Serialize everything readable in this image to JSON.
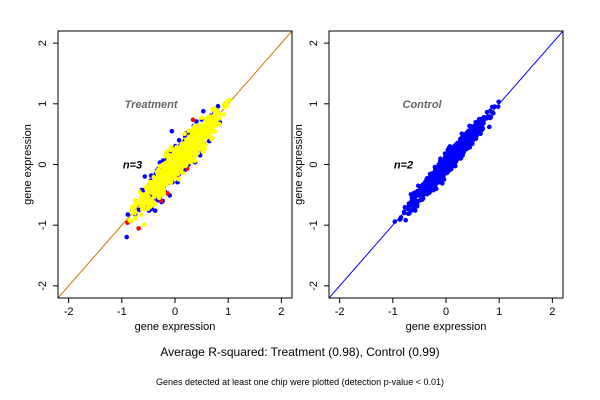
{
  "summary": "Average R-squared: Treatment (0.98), Control (0.99)",
  "footnote": "Genes detected at least one chip were plotted (detection p-value < 0.01)",
  "chart_data": [
    {
      "type": "scatter",
      "title": "Treatment",
      "annotation": "n=3",
      "xlabel": "gene expression",
      "ylabel": "gene expression",
      "xlim": [
        -2.2,
        2.2
      ],
      "ylim": [
        -2.2,
        2.2
      ],
      "xticks": [
        -2,
        -1,
        0,
        1,
        2
      ],
      "yticks": [
        -2,
        -1,
        0,
        1,
        2
      ],
      "reference_line": {
        "slope": 1,
        "intercept": 0,
        "color": "#c87800"
      },
      "series": [
        {
          "color": "#0000ff",
          "x_range": [
            -1.05,
            1.05
          ],
          "spread": 0.16,
          "n": 260
        },
        {
          "color": "#ff0000",
          "x_range": [
            -1.0,
            0.6
          ],
          "spread": 0.18,
          "n": 40
        },
        {
          "color": "#ffff00",
          "x_range": [
            -1.05,
            1.15
          ],
          "spread": 0.11,
          "n": 900
        }
      ]
    },
    {
      "type": "scatter",
      "title": "Control",
      "annotation": "n=2",
      "xlabel": "gene expression",
      "ylabel": "gene expression",
      "xlim": [
        -2.2,
        2.2
      ],
      "ylim": [
        -2.2,
        2.2
      ],
      "xticks": [
        -2,
        -1,
        0,
        1,
        2
      ],
      "yticks": [
        -2,
        -1,
        0,
        1,
        2
      ],
      "reference_line": {
        "slope": 1,
        "intercept": 0,
        "color": "#0000ff"
      },
      "series": [
        {
          "color": "#0000ff",
          "x_range": [
            -1.05,
            1.1
          ],
          "spread": 0.08,
          "n": 900
        }
      ]
    }
  ]
}
